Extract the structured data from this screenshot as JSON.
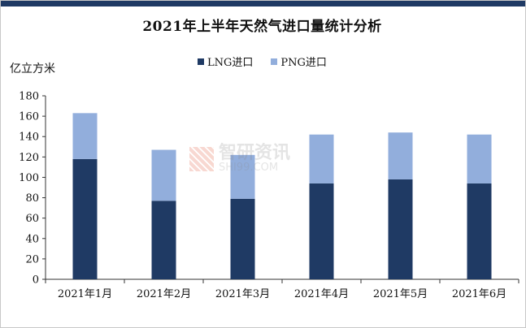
{
  "chart_data": {
    "type": "bar",
    "stacked": true,
    "title": "2021年上半年天然气进口量统计分析",
    "ylabel": "亿立方米",
    "categories": [
      "2021年1月",
      "2021年2月",
      "2021年3月",
      "2021年4月",
      "2021年5月",
      "2021年6月"
    ],
    "series": [
      {
        "name": "LNG进口",
        "color": "#1f3a64",
        "values": [
          118,
          77,
          79,
          94,
          98,
          94
        ]
      },
      {
        "name": "PNG进口",
        "color": "#92aedc",
        "values": [
          45,
          50,
          43,
          48,
          46,
          48
        ]
      }
    ],
    "ylim": [
      0,
      180
    ],
    "yticks": [
      0,
      20,
      40,
      60,
      80,
      100,
      120,
      140,
      160,
      180
    ],
    "legend_position": "top-center",
    "grid": false
  },
  "watermark": {
    "cn": "智研资讯",
    "en": "SHI99.COM"
  }
}
